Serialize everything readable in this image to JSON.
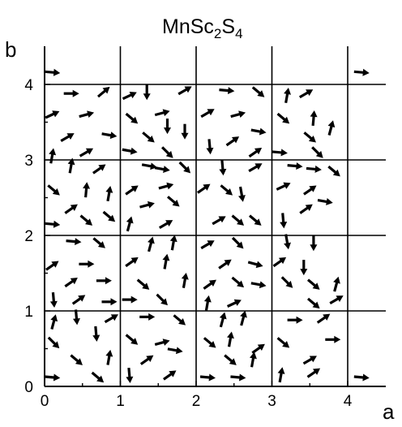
{
  "title": {
    "base": "MnSc",
    "sub1": "2",
    "mid": "S",
    "sub2": "4"
  },
  "x_axis_letter": "a",
  "y_axis_letter": "b",
  "x_ticks": [
    "0",
    "1",
    "2",
    "3",
    "4"
  ],
  "y_ticks": [
    "0",
    "1",
    "2",
    "3",
    "4"
  ],
  "colors": {
    "arrow": "#000000",
    "grid": "#000000",
    "background": "#ffffff"
  },
  "arrows": [
    [
      0.1,
      4.16,
      -5
    ],
    [
      0.35,
      3.88,
      0
    ],
    [
      0.78,
      3.9,
      40
    ],
    [
      0.1,
      3.6,
      25
    ],
    [
      0.55,
      3.6,
      15
    ],
    [
      0.3,
      3.3,
      30
    ],
    [
      0.85,
      3.33,
      -10
    ],
    [
      0.1,
      3.05,
      80
    ],
    [
      0.55,
      3.1,
      30
    ],
    [
      1.12,
      3.85,
      25
    ],
    [
      1.35,
      3.9,
      -90
    ],
    [
      1.85,
      3.92,
      30
    ],
    [
      1.15,
      3.55,
      -40
    ],
    [
      1.55,
      3.62,
      15
    ],
    [
      1.37,
      3.3,
      -40
    ],
    [
      1.62,
      3.45,
      -90
    ],
    [
      1.85,
      3.38,
      -90
    ],
    [
      1.12,
      3.12,
      -10
    ],
    [
      1.62,
      3.1,
      -45
    ],
    [
      2.4,
      3.92,
      -5
    ],
    [
      2.82,
      3.9,
      -40
    ],
    [
      2.15,
      3.62,
      30
    ],
    [
      2.55,
      3.6,
      15
    ],
    [
      2.18,
      3.18,
      -85
    ],
    [
      2.48,
      3.25,
      35
    ],
    [
      2.82,
      3.38,
      -10
    ],
    [
      2.78,
      3.1,
      35
    ],
    [
      3.2,
      3.85,
      80
    ],
    [
      3.45,
      3.88,
      30
    ],
    [
      3.15,
      3.55,
      -40
    ],
    [
      3.55,
      3.55,
      85
    ],
    [
      3.78,
      3.42,
      75
    ],
    [
      3.5,
      3.3,
      -40
    ],
    [
      3.1,
      3.1,
      -5
    ],
    [
      3.6,
      3.1,
      -45
    ],
    [
      0.35,
      2.92,
      80
    ],
    [
      0.72,
      2.88,
      35
    ],
    [
      0.12,
      2.6,
      -40
    ],
    [
      0.55,
      2.6,
      85
    ],
    [
      0.85,
      2.55,
      80
    ],
    [
      0.35,
      2.35,
      35
    ],
    [
      0.55,
      2.2,
      -40
    ],
    [
      0.85,
      2.25,
      -40
    ],
    [
      0.1,
      2.15,
      -5
    ],
    [
      1.38,
      2.92,
      -10
    ],
    [
      1.55,
      2.88,
      -10
    ],
    [
      1.85,
      2.9,
      -45
    ],
    [
      1.15,
      2.6,
      35
    ],
    [
      1.6,
      2.65,
      15
    ],
    [
      1.35,
      2.4,
      15
    ],
    [
      1.7,
      2.45,
      -40
    ],
    [
      1.12,
      2.15,
      75
    ],
    [
      1.6,
      2.15,
      30
    ],
    [
      2.35,
      2.9,
      -85
    ],
    [
      2.78,
      2.9,
      30
    ],
    [
      2.1,
      2.62,
      35
    ],
    [
      2.4,
      2.6,
      -40
    ],
    [
      2.6,
      2.55,
      -80
    ],
    [
      2.3,
      2.2,
      30
    ],
    [
      2.55,
      2.2,
      -40
    ],
    [
      2.78,
      2.2,
      -40
    ],
    [
      3.3,
      2.92,
      -5
    ],
    [
      3.55,
      2.88,
      -5
    ],
    [
      3.82,
      2.85,
      -40
    ],
    [
      3.15,
      2.65,
      25
    ],
    [
      3.5,
      2.6,
      35
    ],
    [
      3.7,
      2.45,
      -10
    ],
    [
      3.15,
      2.2,
      -85
    ],
    [
      3.45,
      2.35,
      35
    ],
    [
      0.38,
      1.92,
      -5
    ],
    [
      0.72,
      1.9,
      -40
    ],
    [
      0.1,
      1.6,
      35
    ],
    [
      0.55,
      1.62,
      0
    ],
    [
      0.35,
      1.38,
      35
    ],
    [
      0.78,
      1.4,
      0
    ],
    [
      0.12,
      1.15,
      -85
    ],
    [
      0.45,
      1.15,
      35
    ],
    [
      0.85,
      1.12,
      0
    ],
    [
      1.4,
      1.88,
      75
    ],
    [
      1.7,
      1.9,
      80
    ],
    [
      1.15,
      1.65,
      35
    ],
    [
      1.6,
      1.65,
      80
    ],
    [
      1.3,
      1.35,
      -40
    ],
    [
      1.85,
      1.4,
      80
    ],
    [
      1.12,
      1.15,
      0
    ],
    [
      1.55,
      1.15,
      -45
    ],
    [
      2.15,
      1.88,
      30
    ],
    [
      2.55,
      1.9,
      -45
    ],
    [
      2.38,
      1.62,
      35
    ],
    [
      2.78,
      1.62,
      -15
    ],
    [
      2.18,
      1.35,
      35
    ],
    [
      2.55,
      1.38,
      -40
    ],
    [
      2.82,
      1.35,
      -10
    ],
    [
      2.15,
      1.1,
      80
    ],
    [
      2.5,
      1.1,
      25
    ],
    [
      3.2,
      1.92,
      -80
    ],
    [
      3.55,
      1.9,
      -90
    ],
    [
      3.1,
      1.65,
      35
    ],
    [
      3.42,
      1.58,
      -90
    ],
    [
      3.2,
      1.38,
      -45
    ],
    [
      3.55,
      1.35,
      -40
    ],
    [
      3.85,
      1.35,
      75
    ],
    [
      3.55,
      1.1,
      -40
    ],
    [
      3.85,
      1.15,
      30
    ],
    [
      0.12,
      0.85,
      75
    ],
    [
      0.42,
      0.92,
      -85
    ],
    [
      0.88,
      0.9,
      30
    ],
    [
      0.12,
      0.58,
      -45
    ],
    [
      0.68,
      0.7,
      -85
    ],
    [
      0.42,
      0.35,
      -40
    ],
    [
      0.85,
      0.38,
      80
    ],
    [
      0.1,
      0.12,
      -5
    ],
    [
      0.7,
      0.12,
      -40
    ],
    [
      1.35,
      0.92,
      0
    ],
    [
      1.78,
      0.88,
      -40
    ],
    [
      1.15,
      0.62,
      -40
    ],
    [
      1.55,
      0.58,
      15
    ],
    [
      1.72,
      0.48,
      -10
    ],
    [
      1.35,
      0.35,
      35
    ],
    [
      1.12,
      0.15,
      -85
    ],
    [
      1.65,
      0.15,
      35
    ],
    [
      2.35,
      0.88,
      75
    ],
    [
      2.62,
      0.9,
      75
    ],
    [
      2.18,
      0.58,
      -40
    ],
    [
      2.45,
      0.62,
      80
    ],
    [
      2.82,
      0.5,
      35
    ],
    [
      2.45,
      0.35,
      -40
    ],
    [
      2.75,
      0.35,
      80
    ],
    [
      2.15,
      0.12,
      -5
    ],
    [
      2.55,
      0.12,
      -5
    ],
    [
      3.3,
      0.88,
      0
    ],
    [
      3.68,
      0.9,
      35
    ],
    [
      3.15,
      0.58,
      -40
    ],
    [
      3.5,
      0.35,
      30
    ],
    [
      3.8,
      0.62,
      0
    ],
    [
      3.12,
      0.15,
      80
    ],
    [
      3.55,
      0.18,
      35
    ],
    [
      4.18,
      4.16,
      -5
    ],
    [
      4.18,
      0.12,
      -5
    ]
  ]
}
